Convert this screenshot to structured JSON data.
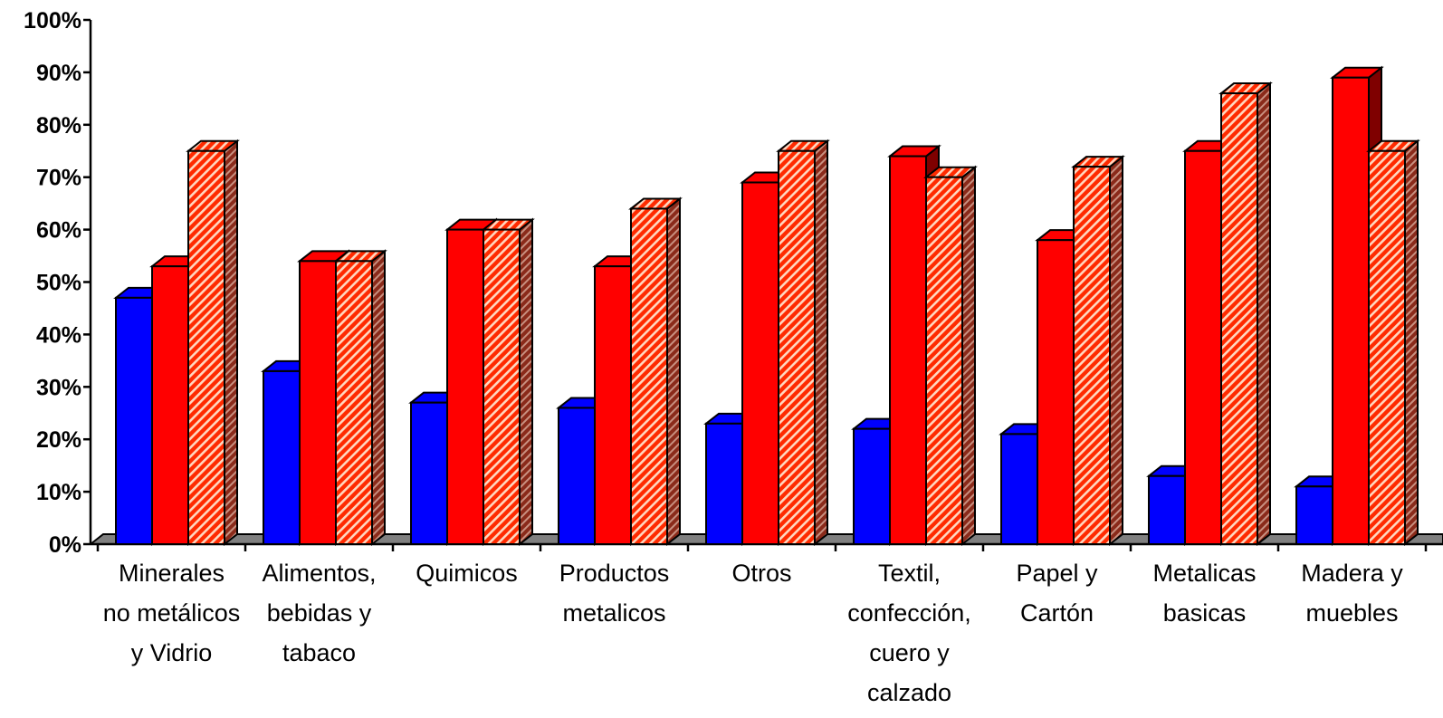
{
  "chart_data": {
    "type": "bar",
    "categories": [
      [
        "Minerales",
        "no metálicos",
        "y Vidrio"
      ],
      [
        "Alimentos,",
        "bebidas y",
        "tabaco"
      ],
      [
        "Quimicos"
      ],
      [
        "Productos",
        "metalicos"
      ],
      [
        "Otros"
      ],
      [
        "Textil,",
        "confección,",
        "cuero y",
        "calzado"
      ],
      [
        "Papel y",
        "Cartón"
      ],
      [
        "Metalicas",
        "basicas"
      ],
      [
        "Madera y",
        "muebles"
      ]
    ],
    "series": [
      {
        "color": "#0000ff",
        "side": "#000080",
        "pattern": "solid",
        "values": [
          47,
          33,
          27,
          26,
          23,
          22,
          21,
          13,
          11
        ]
      },
      {
        "color": "#ff0000",
        "side": "#7f0000",
        "pattern": "solid",
        "values": [
          53,
          54,
          60,
          53,
          69,
          74,
          58,
          75,
          89
        ]
      },
      {
        "color": "#ff0000",
        "side": "#7f0000",
        "pattern": "hatched",
        "values": [
          75,
          54,
          60,
          64,
          75,
          70,
          72,
          86,
          75
        ]
      }
    ],
    "yticks": [
      "0%",
      "10%",
      "20%",
      "30%",
      "40%",
      "50%",
      "60%",
      "70%",
      "80%",
      "90%",
      "100%"
    ],
    "ylim": [
      0,
      100
    ],
    "grid": false,
    "floor_color": "#808080"
  }
}
